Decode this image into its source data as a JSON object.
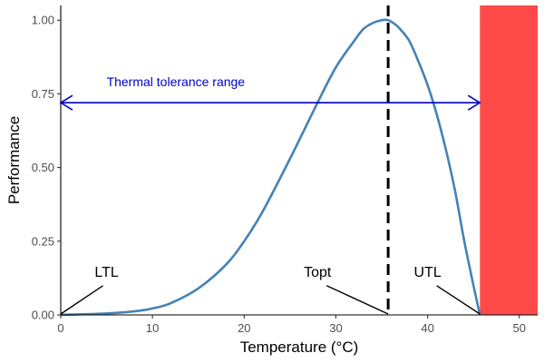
{
  "chart_data": {
    "type": "line",
    "xlabel": "Temperature (°C)",
    "ylabel": "Performance",
    "xlim": [
      0,
      52
    ],
    "ylim": [
      0,
      1.05
    ],
    "x_ticks": [
      0,
      10,
      20,
      30,
      40,
      50
    ],
    "x_tick_labels": [
      "0",
      "10",
      "20",
      "30",
      "40",
      "50"
    ],
    "y_ticks": [
      0,
      0.25,
      0.5,
      0.75,
      1.0
    ],
    "y_tick_labels": [
      "0.00",
      "0.25",
      "0.50",
      "0.75",
      "1.00"
    ],
    "grid": false,
    "series": [
      {
        "color": "#4682B4",
        "x": [
          0,
          5,
          8,
          10,
          12,
          15,
          18,
          20,
          22,
          25,
          28,
          30,
          32,
          33,
          34,
          35,
          35.7,
          36.5,
          37,
          38,
          39,
          40,
          41,
          42,
          43,
          44,
          45,
          45.7
        ],
        "y": [
          0,
          0.005,
          0.012,
          0.022,
          0.04,
          0.09,
          0.17,
          0.25,
          0.35,
          0.53,
          0.72,
          0.84,
          0.93,
          0.97,
          0.99,
          1.0,
          1.0,
          0.985,
          0.97,
          0.93,
          0.86,
          0.78,
          0.68,
          0.56,
          0.42,
          0.25,
          0.1,
          0.0
        ]
      }
    ],
    "topt_line": {
      "x": 35.7,
      "color": "#000000"
    },
    "lethal_zone": {
      "x_start": 45.7,
      "x_end": 52,
      "color": "#FF4A4A"
    },
    "tolerance_range": {
      "x_start": 0,
      "x_end": 45.7,
      "y": 0.72,
      "label": "Thermal tolerance range",
      "color": "#0000CC"
    },
    "annotations": [
      {
        "text": "LTL",
        "x": 5,
        "y": 0.13,
        "point_x": 0,
        "point_y": 0
      },
      {
        "text": "Topt",
        "x": 28,
        "y": 0.13,
        "point_x": 35.7,
        "point_y": 0
      },
      {
        "text": "UTL",
        "x": 40,
        "y": 0.13,
        "point_x": 45.7,
        "point_y": 0
      }
    ]
  }
}
